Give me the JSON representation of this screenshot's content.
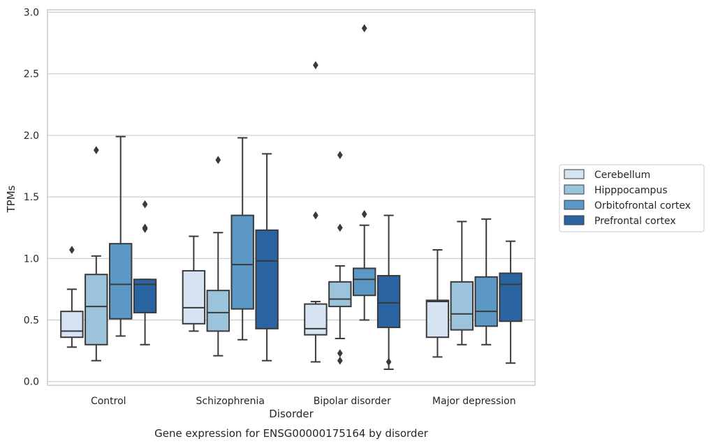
{
  "chart_data": {
    "type": "boxplot",
    "title": "",
    "caption": "Gene expression for ENSG00000175164 by disorder",
    "xlabel": "Disorder",
    "ylabel": "TPMs",
    "ylim": [
      -0.03,
      3.02
    ],
    "yticks": [
      "0.0",
      "0.5",
      "1.0",
      "1.5",
      "2.0",
      "2.5",
      "3.0"
    ],
    "grid": true,
    "legend_position": "right",
    "categories": [
      "Control",
      "Schizophrenia",
      "Bipolar disorder",
      "Major depression"
    ],
    "series": [
      {
        "name": "Cerebellum",
        "color": "#d5e3f2",
        "boxes": [
          {
            "whisker_low": 0.28,
            "q1": 0.36,
            "median": 0.41,
            "q3": 0.57,
            "whisker_high": 0.75,
            "outliers": [
              1.07
            ]
          },
          {
            "whisker_low": 0.41,
            "q1": 0.47,
            "median": 0.6,
            "q3": 0.9,
            "whisker_high": 1.18,
            "outliers": []
          },
          {
            "whisker_low": 0.16,
            "q1": 0.38,
            "median": 0.43,
            "q3": 0.63,
            "whisker_high": 0.65,
            "outliers": [
              1.35,
              2.57
            ]
          },
          {
            "whisker_low": 0.2,
            "q1": 0.36,
            "median": 0.65,
            "q3": 0.66,
            "whisker_high": 1.07,
            "outliers": []
          }
        ]
      },
      {
        "name": "Hipppocampus",
        "color": "#9bc3dc",
        "boxes": [
          {
            "whisker_low": 0.17,
            "q1": 0.3,
            "median": 0.61,
            "q3": 0.87,
            "whisker_high": 1.02,
            "outliers": [
              1.88
            ]
          },
          {
            "whisker_low": 0.21,
            "q1": 0.41,
            "median": 0.56,
            "q3": 0.74,
            "whisker_high": 1.21,
            "outliers": [
              1.8
            ]
          },
          {
            "whisker_low": 0.35,
            "q1": 0.61,
            "median": 0.67,
            "q3": 0.81,
            "whisker_high": 0.94,
            "outliers": [
              0.17,
              0.23,
              1.25,
              1.84
            ]
          },
          {
            "whisker_low": 0.3,
            "q1": 0.42,
            "median": 0.55,
            "q3": 0.81,
            "whisker_high": 1.3,
            "outliers": []
          }
        ]
      },
      {
        "name": "Orbitofrontal cortex",
        "color": "#5c98c5",
        "boxes": [
          {
            "whisker_low": 0.37,
            "q1": 0.51,
            "median": 0.79,
            "q3": 1.12,
            "whisker_high": 1.99,
            "outliers": []
          },
          {
            "whisker_low": 0.34,
            "q1": 0.59,
            "median": 0.95,
            "q3": 1.35,
            "whisker_high": 1.98,
            "outliers": []
          },
          {
            "whisker_low": 0.5,
            "q1": 0.7,
            "median": 0.83,
            "q3": 0.92,
            "whisker_high": 1.27,
            "outliers": [
              1.36,
              2.87
            ]
          },
          {
            "whisker_low": 0.3,
            "q1": 0.45,
            "median": 0.57,
            "q3": 0.85,
            "whisker_high": 1.32,
            "outliers": []
          }
        ]
      },
      {
        "name": "Prefrontal cortex",
        "color": "#2b64a2",
        "boxes": [
          {
            "whisker_low": 0.3,
            "q1": 0.56,
            "median": 0.79,
            "q3": 0.83,
            "whisker_high": 0.83,
            "outliers": [
              1.24,
              1.25,
              1.44
            ]
          },
          {
            "whisker_low": 0.17,
            "q1": 0.43,
            "median": 0.98,
            "q3": 1.23,
            "whisker_high": 1.85,
            "outliers": []
          },
          {
            "whisker_low": 0.1,
            "q1": 0.44,
            "median": 0.64,
            "q3": 0.86,
            "whisker_high": 1.35,
            "outliers": [
              0.16
            ]
          },
          {
            "whisker_low": 0.15,
            "q1": 0.49,
            "median": 0.79,
            "q3": 0.88,
            "whisker_high": 1.14,
            "outliers": []
          }
        ]
      }
    ]
  },
  "colors": {
    "grid": "#cccccc",
    "frame": "#cccccc",
    "box_edge": "#3a3a3a"
  }
}
